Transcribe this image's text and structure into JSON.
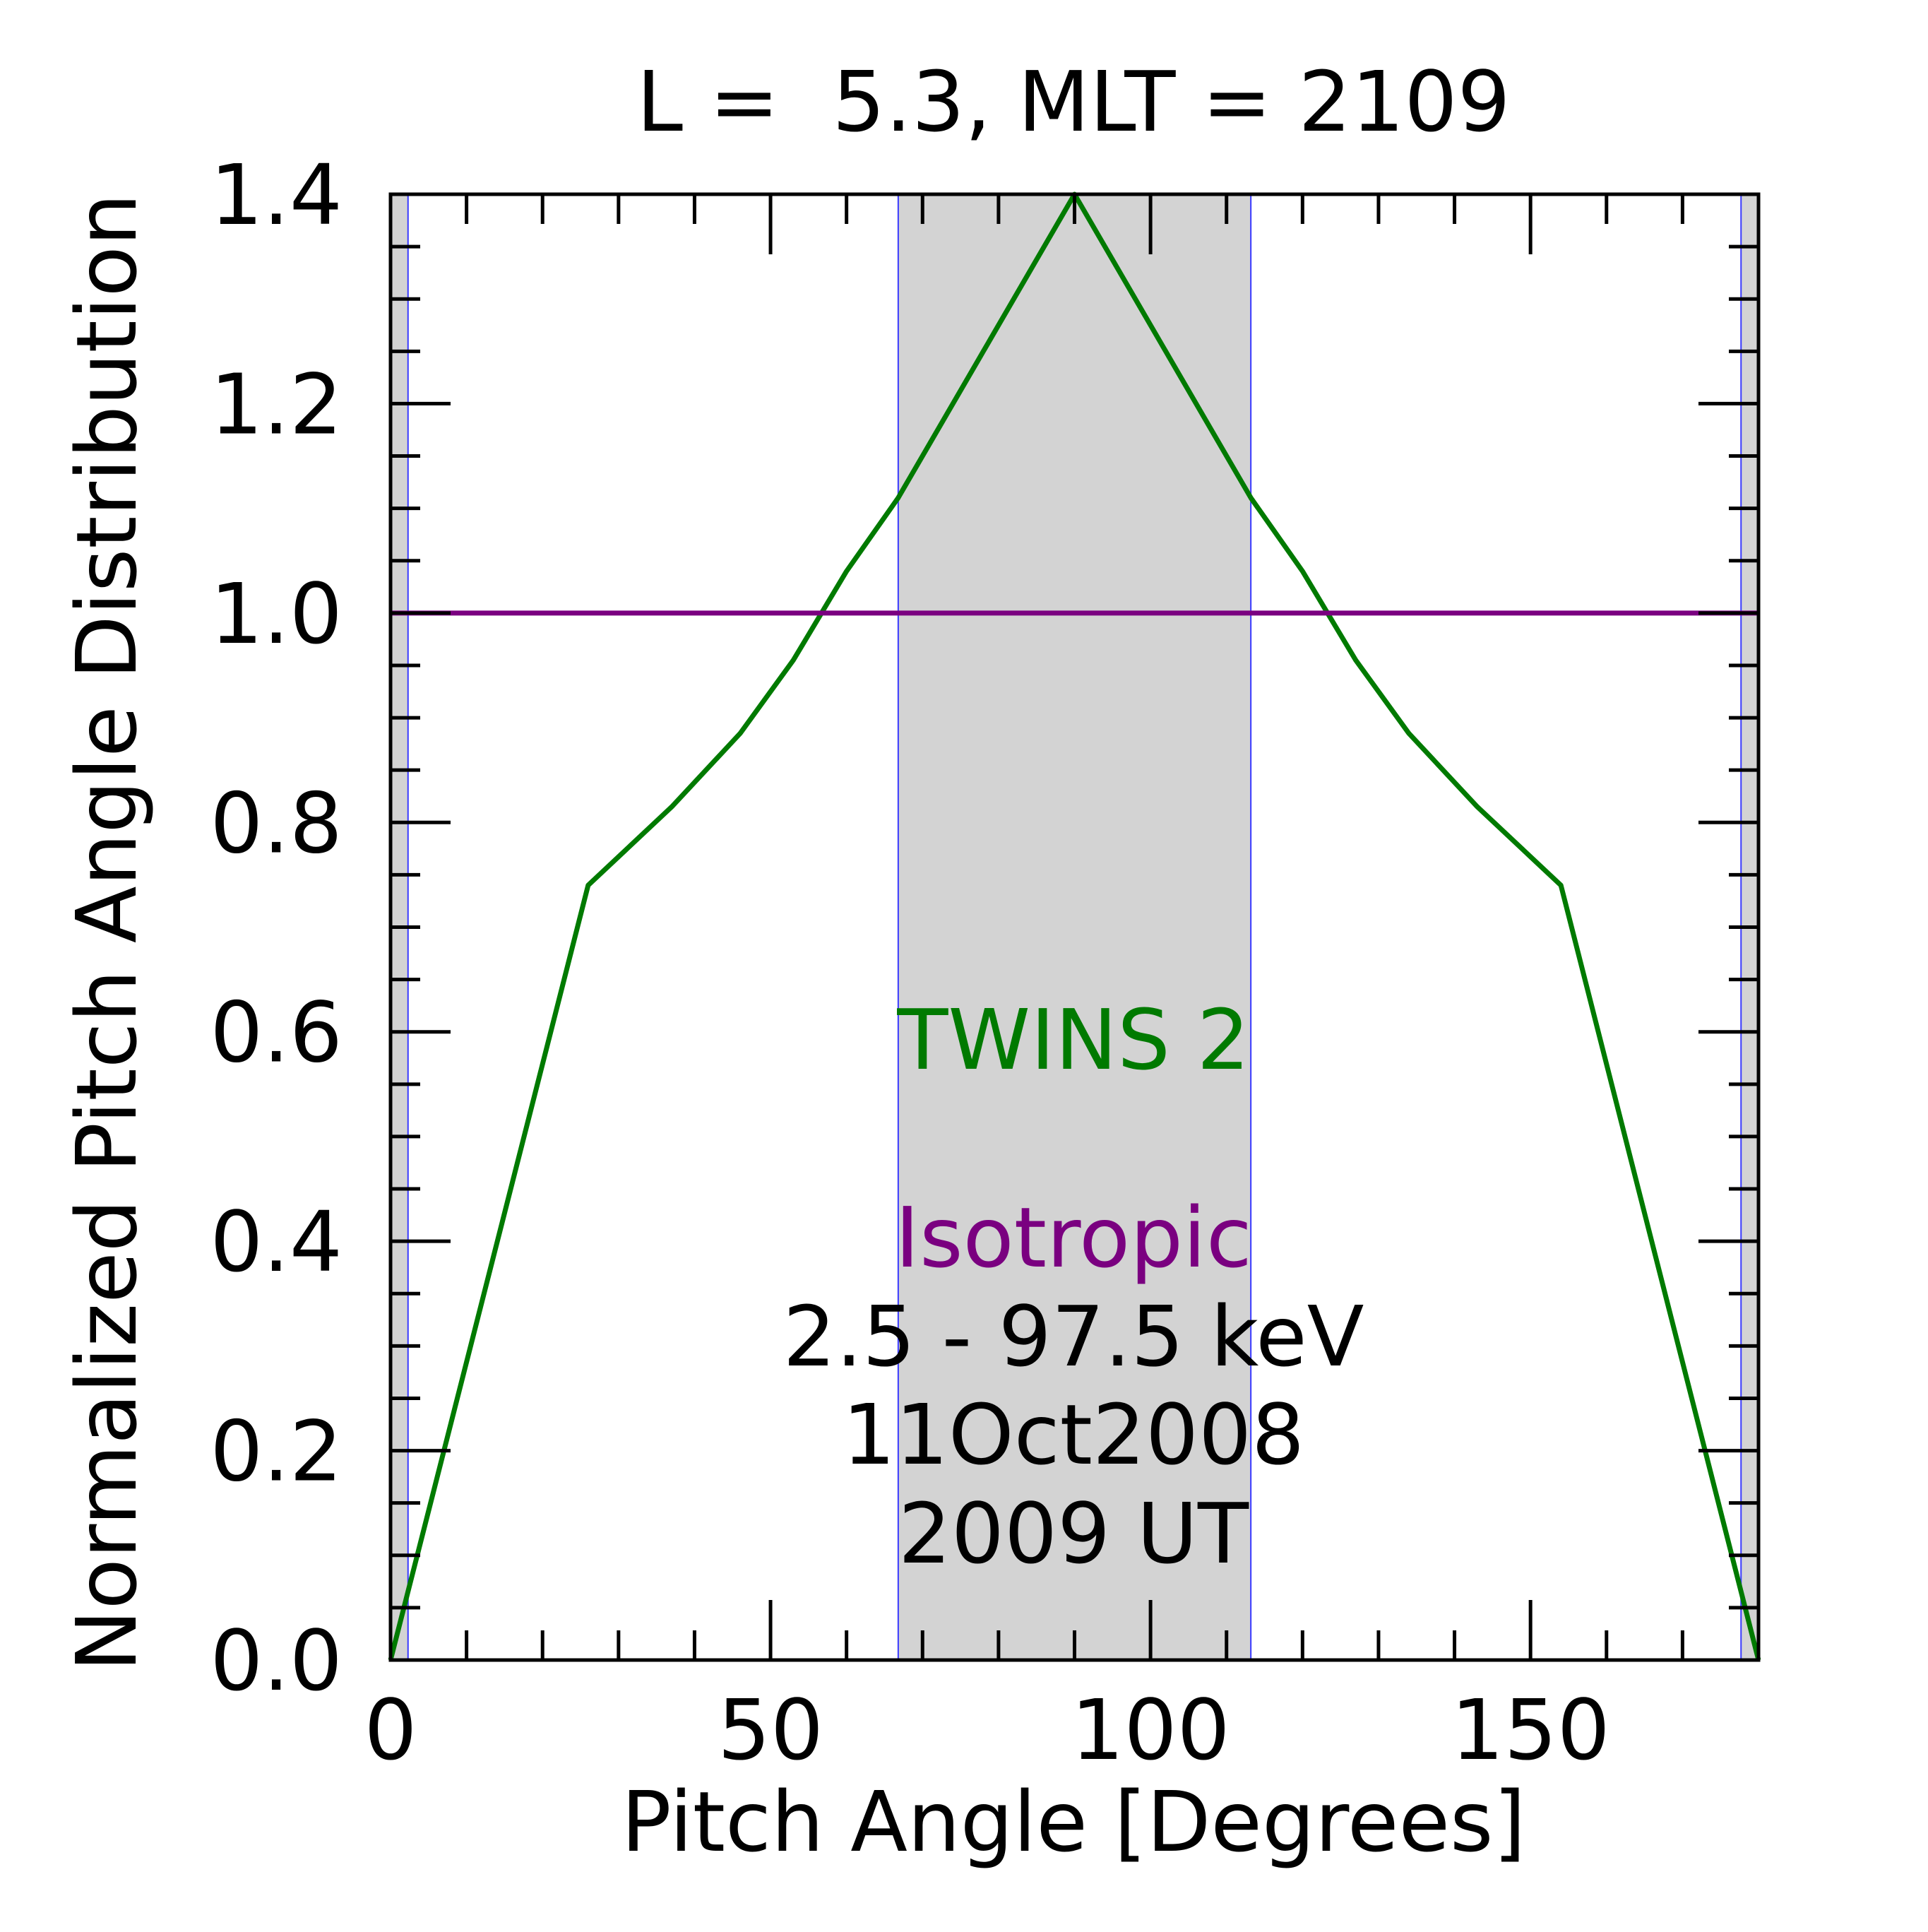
{
  "chart_data": {
    "type": "line",
    "title": "L =  5.3, MLT = 2109",
    "xlabel": "Pitch Angle [Degrees]",
    "ylabel": "Normalized Pitch Angle Distribution",
    "xlim": [
      0,
      180
    ],
    "ylim": [
      0,
      1.4
    ],
    "x_ticks": [
      0,
      50,
      100,
      150
    ],
    "x_tick_labels": [
      "0",
      "50",
      "100",
      "150"
    ],
    "y_ticks": [
      0.0,
      0.2,
      0.4,
      0.6,
      0.8,
      1.0,
      1.2,
      1.4
    ],
    "y_tick_labels": [
      "0.0",
      "0.2",
      "0.4",
      "0.6",
      "0.8",
      "1.0",
      "1.2",
      "1.4"
    ],
    "grid": false,
    "shaded_regions": [
      {
        "x0": 0,
        "x1": 2.3,
        "color": "#d3d3d3"
      },
      {
        "x0": 66.8,
        "x1": 113.2,
        "color": "#d3d3d3"
      },
      {
        "x0": 177.7,
        "x1": 180,
        "color": "#d3d3d3"
      }
    ],
    "vertical_lines": [
      2.3,
      66.8,
      113.2,
      177.7
    ],
    "series": [
      {
        "name": "TWINS 2",
        "color": "#007a00",
        "x": [
          0,
          26,
          37,
          46,
          53,
          60,
          66.8,
          78,
          90,
          102,
          113.2,
          120,
          127,
          134,
          143,
          154,
          180
        ],
        "values": [
          0.0,
          0.74,
          0.815,
          0.885,
          0.955,
          1.04,
          1.11,
          1.25,
          1.4,
          1.25,
          1.11,
          1.04,
          0.955,
          0.885,
          0.815,
          0.74,
          0.0
        ]
      },
      {
        "name": "Isotropic",
        "color": "#7a0080",
        "x": [
          0,
          180
        ],
        "values": [
          1.0,
          1.0
        ]
      }
    ],
    "annotations": {
      "series1_label": "TWINS 2",
      "series2_label": "Isotropic",
      "energy": "2.5 - 97.5 keV",
      "date": "11Oct2008",
      "time": "2009 UT"
    },
    "colors": {
      "axis": "#000000",
      "shade": "#d3d3d3",
      "vline": "#3a3aff"
    }
  }
}
